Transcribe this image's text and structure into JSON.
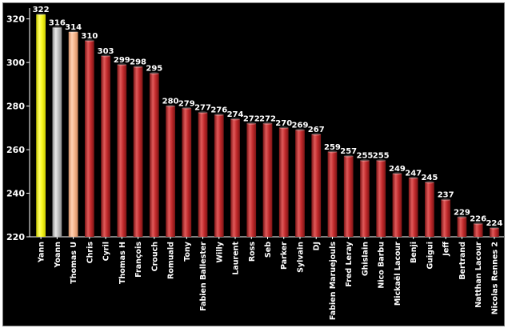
{
  "chart_data": {
    "type": "bar",
    "title": "",
    "xlabel": "",
    "ylabel": "",
    "ylim": [
      220,
      325
    ],
    "yticks": [
      220,
      240,
      260,
      280,
      300,
      320
    ],
    "grid": false,
    "legend": "none",
    "categories": [
      "Yann",
      "Yoann",
      "Thomas U",
      "Chris",
      "Cyril",
      "Thomas H",
      "François",
      "Crouch",
      "Romuald",
      "Tony",
      "Fabien Ballester",
      "Willy",
      "Laurent",
      "Ross",
      "Seb",
      "Parker",
      "Sylvain",
      "DJ",
      "Fabien Maruejouls",
      "Fred Leray",
      "Ghislain",
      "Nico Barbu",
      "Mickaël Lacour",
      "Benji",
      "Guigui",
      "Jeff",
      "Bertrand",
      "Natthan Lacour",
      "Nicolas Rennes 2"
    ],
    "values": [
      322,
      316,
      314,
      310,
      303,
      299,
      298,
      295,
      280,
      279,
      277,
      276,
      274,
      272,
      272,
      270,
      269,
      267,
      259,
      257,
      255,
      255,
      249,
      247,
      245,
      237,
      229,
      226,
      224
    ],
    "bar_colors": {
      "first": "#f5f51a",
      "second": "#bdbdbd",
      "third": "#f4b48a",
      "default": "#c0292b"
    }
  }
}
